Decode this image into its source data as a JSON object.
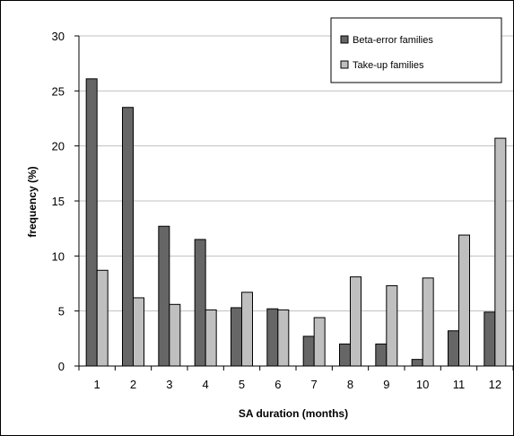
{
  "chart_data": {
    "type": "bar",
    "title": "",
    "xlabel": "SA duration (months)",
    "ylabel": "frequency (%)",
    "ylim": [
      0,
      30
    ],
    "yticks": [
      "0",
      "5",
      "10",
      "15",
      "20",
      "25",
      "30"
    ],
    "categories": [
      "1",
      "2",
      "3",
      "4",
      "5",
      "6",
      "7",
      "8",
      "9",
      "10",
      "11",
      "12"
    ],
    "series": [
      {
        "name": "Beta-error families",
        "color": "#666666",
        "values": [
          26.1,
          23.5,
          12.7,
          11.5,
          5.3,
          5.2,
          2.7,
          2.0,
          2.0,
          0.6,
          3.2,
          4.9
        ]
      },
      {
        "name": "Take-up families",
        "color": "#bfbfbf",
        "values": [
          8.7,
          6.2,
          5.6,
          5.1,
          6.7,
          5.1,
          4.4,
          8.1,
          7.3,
          8.0,
          11.9,
          20.7
        ]
      }
    ],
    "grid": "horizontal",
    "legend_position": "top-right"
  }
}
